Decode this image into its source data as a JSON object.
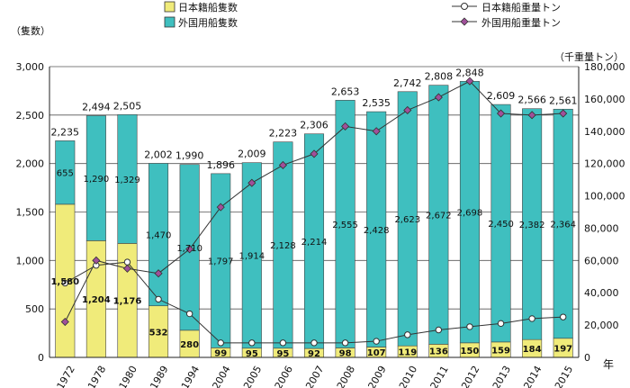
{
  "chart_data": {
    "type": "bar",
    "left_axis_unit": "（隻数）",
    "right_axis_unit": "（千重量トン）",
    "x_unit": "年",
    "categories": [
      "1972",
      "1978",
      "1980",
      "1989",
      "1994",
      "2004",
      "2005",
      "2006",
      "2007",
      "2008",
      "2009",
      "2010",
      "2011",
      "2012",
      "2013",
      "2014",
      "2015"
    ],
    "ylim_left": [
      0,
      3000
    ],
    "ylim_right": [
      0,
      180000
    ],
    "yticks_left": [
      "0",
      "500",
      "1,000",
      "1,500",
      "2,000",
      "2,500",
      "3,000"
    ],
    "yticks_right": [
      "0",
      "20,000",
      "40,000",
      "60,000",
      "80,000",
      "100,000",
      "120,000",
      "140,000",
      "160,000",
      "180,000"
    ],
    "series": [
      {
        "name": "日本籍船隻数",
        "kind": "bar",
        "axis": "left",
        "color": "#f0eb7a",
        "values": [
          1580,
          1204,
          1176,
          532,
          280,
          99,
          95,
          95,
          92,
          98,
          107,
          119,
          136,
          150,
          159,
          184,
          197
        ],
        "labels": [
          "1,580",
          "1,204",
          "1,176",
          "532",
          "280",
          "99",
          "95",
          "95",
          "92",
          "98",
          "107",
          "119",
          "136",
          "150",
          "159",
          "184",
          "197"
        ]
      },
      {
        "name": "外国用船隻数",
        "kind": "bar",
        "axis": "left",
        "color": "#3fbfbf",
        "values": [
          655,
          1290,
          1329,
          1470,
          1710,
          1797,
          1914,
          2128,
          2214,
          2555,
          2428,
          2623,
          2672,
          2698,
          2450,
          2382,
          2364
        ],
        "labels": [
          "655",
          "1,290",
          "1,329",
          "1,470",
          "1,710",
          "1,797",
          "1,914",
          "2,128",
          "2,214",
          "2,555",
          "2,428",
          "2,623",
          "2,672",
          "2,698",
          "2,450",
          "2,382",
          "2,364"
        ]
      },
      {
        "name": "日本籍船重量トン",
        "kind": "line",
        "axis": "right",
        "color": "#ffffff",
        "values": [
          46000,
          57000,
          59000,
          36000,
          27000,
          9000,
          9000,
          9000,
          9000,
          9000,
          10000,
          14000,
          17000,
          19000,
          21000,
          24000,
          25000
        ]
      },
      {
        "name": "外国用船重量トン",
        "kind": "line",
        "axis": "right",
        "color": "#a0509a",
        "values": [
          22000,
          60000,
          55000,
          52000,
          67000,
          93000,
          108000,
          119000,
          126000,
          143000,
          140000,
          153000,
          161000,
          171000,
          151000,
          150000,
          151000
        ]
      }
    ],
    "totals": [
      "2,235",
      "2,494",
      "2,505",
      "2,002",
      "1,990",
      "1,896",
      "2,009",
      "2,223",
      "2,306",
      "2,653",
      "2,535",
      "2,742",
      "2,808",
      "2,848",
      "2,609",
      "2,566",
      "2,561"
    ]
  }
}
